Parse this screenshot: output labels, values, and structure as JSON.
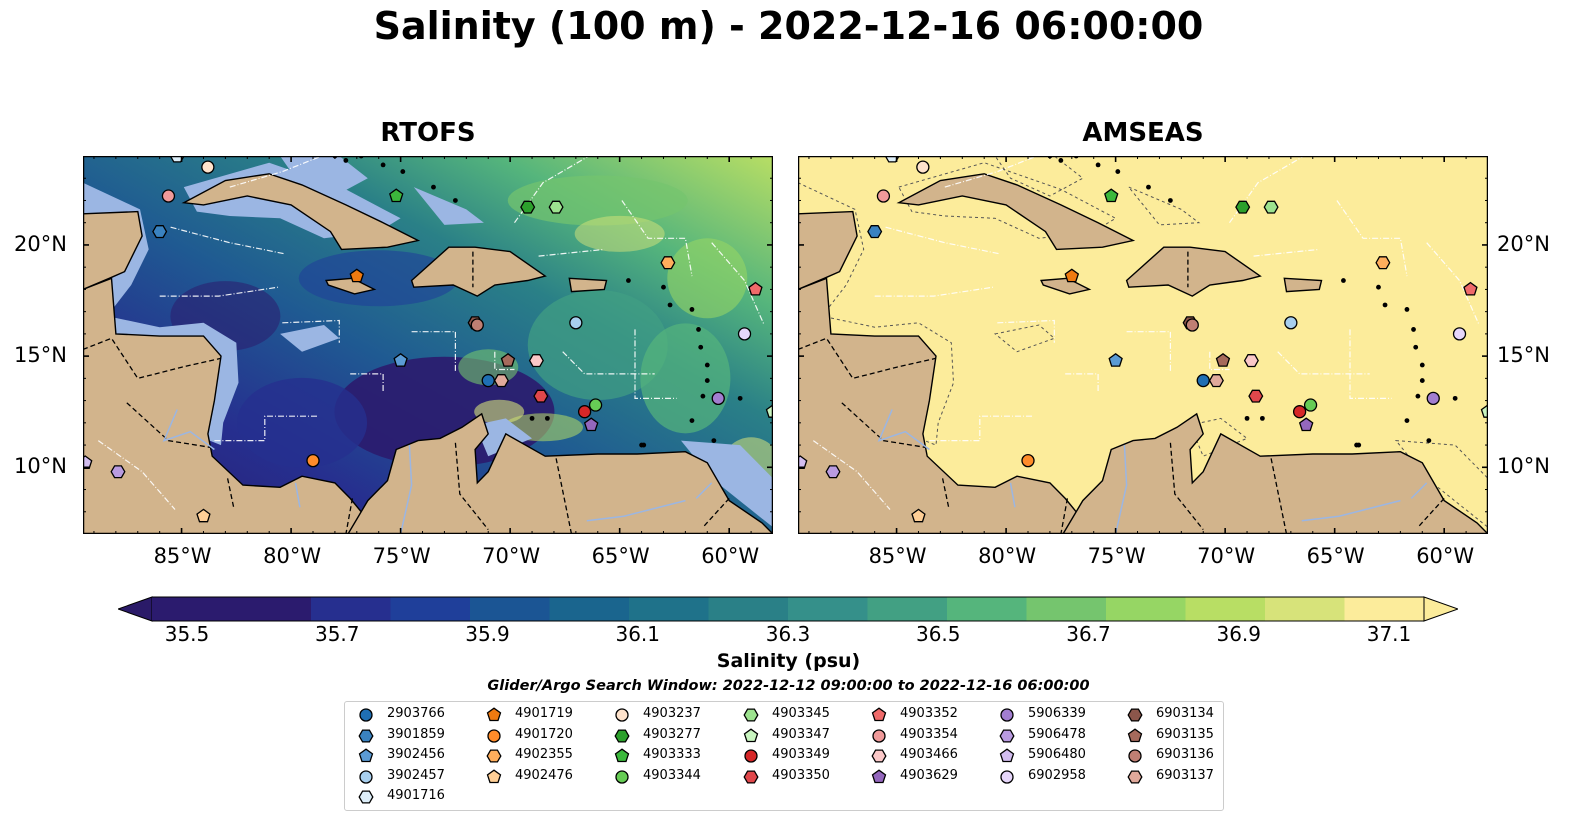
{
  "figure": {
    "title": "Salinity (100 m) - 2022-12-16 06:00:00",
    "panels": [
      {
        "title": "RTOFS",
        "fill": "gradient"
      },
      {
        "title": "AMSEAS",
        "fill": "#fcec9b"
      }
    ],
    "lon_ticks": [
      "85°W",
      "80°W",
      "75°W",
      "70°W",
      "65°W",
      "60°W"
    ],
    "lat_ticks": [
      "20°N",
      "15°N",
      "10°N"
    ],
    "extent": {
      "lon_min": -89.5,
      "lon_max": -58.0,
      "lat_min": 7.0,
      "lat_max": 24.0
    }
  },
  "colorbar": {
    "label": "Salinity (psu)",
    "ticks": [
      "35.5",
      "35.7",
      "35.9",
      "36.1",
      "36.3",
      "36.5",
      "36.7",
      "36.9",
      "37.1"
    ],
    "min": 35.5,
    "max": 37.1,
    "colors": [
      "#2b1b6e",
      "#262f8f",
      "#1f3f9a",
      "#1b5594",
      "#1a658e",
      "#1f728a",
      "#2a8087",
      "#35908a",
      "#42a083",
      "#55b57c",
      "#75c56e",
      "#96d664",
      "#b8de64",
      "#d7e37a",
      "#fcec9b"
    ]
  },
  "search_window": "Glider/Argo Search Window: 2022-12-12 09:00:00 to 2022-12-16 06:00:00",
  "colors": {
    "land": "#d2b48c",
    "shelf": "#9bb6e3"
  },
  "legend": [
    {
      "id": "2903766",
      "marker": "circle",
      "color": "#1f6fb4"
    },
    {
      "id": "3901859",
      "marker": "hexagon",
      "color": "#3a82c0"
    },
    {
      "id": "3902456",
      "marker": "pentagon",
      "color": "#5b9bd5"
    },
    {
      "id": "3902457",
      "marker": "circle",
      "color": "#a8cfee"
    },
    {
      "id": "4901716",
      "marker": "hexagon",
      "color": "#ddeef9"
    },
    {
      "id": "4901719",
      "marker": "pentagon",
      "color": "#f07a10"
    },
    {
      "id": "4901720",
      "marker": "circle",
      "color": "#ff8c2a"
    },
    {
      "id": "4902355",
      "marker": "hexagon",
      "color": "#ffae5c"
    },
    {
      "id": "4902476",
      "marker": "pentagon",
      "color": "#ffcf96"
    },
    {
      "id": "4903237",
      "marker": "circle",
      "color": "#ffe3cc"
    },
    {
      "id": "4903277",
      "marker": "hexagon",
      "color": "#2ca02c"
    },
    {
      "id": "4903333",
      "marker": "pentagon",
      "color": "#3cb83c"
    },
    {
      "id": "4903344",
      "marker": "circle",
      "color": "#66cc55"
    },
    {
      "id": "4903345",
      "marker": "hexagon",
      "color": "#9de38f"
    },
    {
      "id": "4903347",
      "marker": "pentagon",
      "color": "#c9f5c0"
    },
    {
      "id": "4903349",
      "marker": "circle",
      "color": "#d62728"
    },
    {
      "id": "4903350",
      "marker": "hexagon",
      "color": "#e0474b"
    },
    {
      "id": "4903352",
      "marker": "pentagon",
      "color": "#ef6a6a"
    },
    {
      "id": "4903354",
      "marker": "circle",
      "color": "#f09a9a"
    },
    {
      "id": "4903466",
      "marker": "hexagon",
      "color": "#fbc8c8"
    },
    {
      "id": "4903629",
      "marker": "pentagon",
      "color": "#9467bd"
    },
    {
      "id": "5906339",
      "marker": "circle",
      "color": "#a27ed0"
    },
    {
      "id": "5906478",
      "marker": "hexagon",
      "color": "#b99be0"
    },
    {
      "id": "5906480",
      "marker": "pentagon",
      "color": "#d2bdef"
    },
    {
      "id": "6902958",
      "marker": "circle",
      "color": "#e6d6fa"
    },
    {
      "id": "6903134",
      "marker": "hexagon",
      "color": "#8c564b"
    },
    {
      "id": "6903135",
      "marker": "pentagon",
      "color": "#a66a5c"
    },
    {
      "id": "6903136",
      "marker": "circle",
      "color": "#c07f73"
    },
    {
      "id": "6903137",
      "marker": "hexagon",
      "color": "#e0a99b"
    }
  ],
  "floats": [
    {
      "id": "2903766",
      "lon": -71.0,
      "lat": 13.9
    },
    {
      "id": "3901859",
      "lon": -86.0,
      "lat": 20.6
    },
    {
      "id": "3902456",
      "lon": -75.0,
      "lat": 14.8
    },
    {
      "id": "3902457",
      "lon": -67.0,
      "lat": 16.5
    },
    {
      "id": "4901716",
      "lon": -85.2,
      "lat": 24.0
    },
    {
      "id": "4901719",
      "lon": -77.0,
      "lat": 18.6
    },
    {
      "id": "4901720",
      "lon": -79.0,
      "lat": 10.3
    },
    {
      "id": "4902355",
      "lon": -62.8,
      "lat": 19.2
    },
    {
      "id": "4902476",
      "lon": -84.0,
      "lat": 7.8
    },
    {
      "id": "4903237",
      "lon": -83.8,
      "lat": 23.5
    },
    {
      "id": "4903277",
      "lon": -69.2,
      "lat": 21.7
    },
    {
      "id": "4903333",
      "lon": -75.2,
      "lat": 22.2
    },
    {
      "id": "4903344",
      "lon": -66.1,
      "lat": 12.8
    },
    {
      "id": "4903345",
      "lon": -67.9,
      "lat": 21.7
    },
    {
      "id": "4903347",
      "lon": -58.0,
      "lat": 12.5
    },
    {
      "id": "4903349",
      "lon": -66.6,
      "lat": 12.5
    },
    {
      "id": "4903350",
      "lon": -68.6,
      "lat": 13.2
    },
    {
      "id": "4903352",
      "lon": -58.8,
      "lat": 18.0
    },
    {
      "id": "4903354",
      "lon": -85.6,
      "lat": 22.2
    },
    {
      "id": "4903466",
      "lon": -68.8,
      "lat": 14.8
    },
    {
      "id": "4903629",
      "lon": -66.3,
      "lat": 11.9
    },
    {
      "id": "5906339",
      "lon": -60.5,
      "lat": 13.1
    },
    {
      "id": "5906478",
      "lon": -87.9,
      "lat": 9.8
    },
    {
      "id": "5906480",
      "lon": -89.4,
      "lat": 10.2
    },
    {
      "id": "6902958",
      "lon": -59.3,
      "lat": 16.0
    },
    {
      "id": "6903134",
      "lon": -71.6,
      "lat": 16.5
    },
    {
      "id": "6903135",
      "lon": -70.1,
      "lat": 14.8
    },
    {
      "id": "6903136",
      "lon": -71.5,
      "lat": 16.4
    },
    {
      "id": "6903137",
      "lon": -70.4,
      "lat": 13.9
    }
  ]
}
